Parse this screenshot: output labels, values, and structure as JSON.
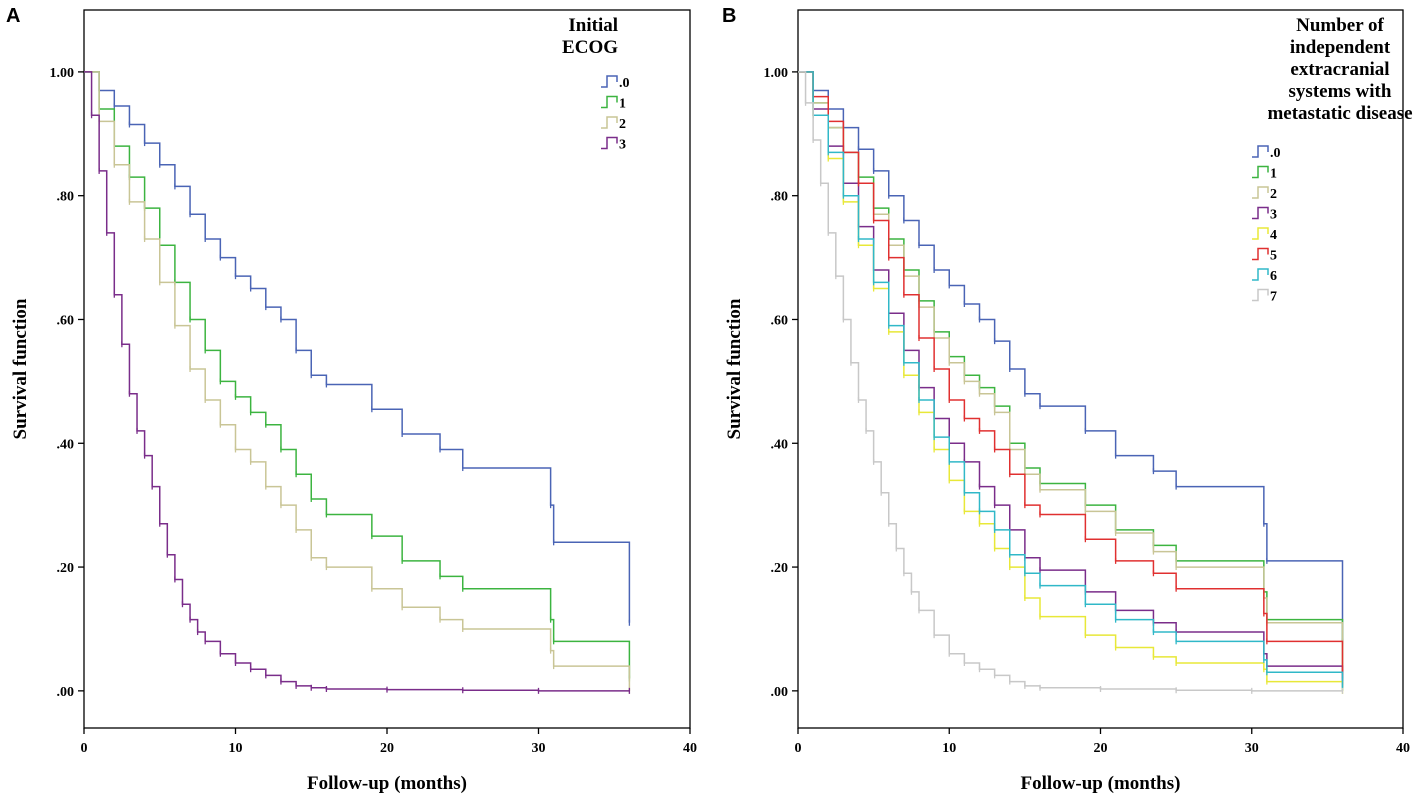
{
  "chart_data": [
    {
      "panel": "A",
      "type": "line",
      "title": "",
      "xlabel": "Follow-up (months)",
      "ylabel": "Survival function",
      "xlim": [
        0,
        40
      ],
      "ylim": [
        -0.06,
        1.1
      ],
      "xticks": [
        0,
        10,
        20,
        30,
        40
      ],
      "xtick_labels": [
        "0",
        "10",
        "20",
        "30",
        "40"
      ],
      "yticks": [
        0,
        0.2,
        0.4,
        0.6,
        0.8,
        1.0
      ],
      "ytick_labels": [
        ".00",
        ".20",
        ".40",
        ".60",
        ".80",
        "1.00"
      ],
      "legend_title": [
        "Initial",
        "ECOG"
      ],
      "series": [
        {
          "name": ".0",
          "color": "#4a64b5",
          "x": [
            0,
            1,
            2,
            3,
            4,
            5,
            6,
            7,
            8,
            9,
            10,
            11,
            12,
            13,
            14,
            15,
            16,
            19,
            21,
            23.5,
            25,
            30.8,
            31,
            36
          ],
          "y": [
            1.0,
            0.97,
            0.945,
            0.915,
            0.885,
            0.85,
            0.815,
            0.77,
            0.73,
            0.7,
            0.67,
            0.65,
            0.62,
            0.6,
            0.55,
            0.51,
            0.495,
            0.455,
            0.415,
            0.39,
            0.36,
            0.3,
            0.24,
            0.11
          ]
        },
        {
          "name": "1",
          "color": "#3cb440",
          "x": [
            0,
            1,
            2,
            3,
            4,
            5,
            6,
            7,
            8,
            9,
            10,
            11,
            12,
            13,
            14,
            15,
            16,
            19,
            21,
            23.5,
            25,
            30.8,
            31,
            36
          ],
          "y": [
            1.0,
            0.94,
            0.88,
            0.83,
            0.78,
            0.72,
            0.66,
            0.6,
            0.55,
            0.5,
            0.475,
            0.45,
            0.43,
            0.39,
            0.35,
            0.31,
            0.285,
            0.25,
            0.21,
            0.185,
            0.165,
            0.115,
            0.08,
            0.02
          ]
        },
        {
          "name": "2",
          "color": "#c9c596",
          "x": [
            0,
            1,
            2,
            3,
            4,
            5,
            6,
            7,
            8,
            9,
            10,
            11,
            12,
            13,
            14,
            15,
            16,
            19,
            21,
            23.5,
            25,
            30.8,
            31,
            36
          ],
          "y": [
            1.0,
            0.92,
            0.85,
            0.79,
            0.73,
            0.66,
            0.59,
            0.52,
            0.47,
            0.43,
            0.39,
            0.37,
            0.33,
            0.3,
            0.26,
            0.215,
            0.2,
            0.165,
            0.135,
            0.115,
            0.1,
            0.065,
            0.04,
            0.0
          ]
        },
        {
          "name": "3",
          "color": "#7a2d8a",
          "x": [
            0,
            0.5,
            1,
            1.5,
            2,
            2.5,
            3,
            3.5,
            4,
            4.5,
            5,
            5.5,
            6,
            6.5,
            7,
            7.5,
            8,
            9,
            10,
            11,
            12,
            13,
            14,
            15,
            16,
            20,
            25,
            30,
            36
          ],
          "y": [
            1.0,
            0.93,
            0.84,
            0.74,
            0.64,
            0.56,
            0.48,
            0.42,
            0.38,
            0.33,
            0.27,
            0.22,
            0.18,
            0.14,
            0.115,
            0.095,
            0.08,
            0.06,
            0.045,
            0.035,
            0.025,
            0.015,
            0.008,
            0.005,
            0.003,
            0.002,
            0.001,
            0.0,
            0.0
          ]
        }
      ]
    },
    {
      "panel": "B",
      "type": "line",
      "title": "",
      "xlabel": "Follow-up (months)",
      "ylabel": "Survival function",
      "xlim": [
        0,
        40
      ],
      "ylim": [
        -0.06,
        1.1
      ],
      "xticks": [
        0,
        10,
        20,
        30,
        40
      ],
      "xtick_labels": [
        "0",
        "10",
        "20",
        "30",
        "40"
      ],
      "yticks": [
        0,
        0.2,
        0.4,
        0.6,
        0.8,
        1.0
      ],
      "ytick_labels": [
        ".00",
        ".20",
        ".40",
        ".60",
        ".80",
        "1.00"
      ],
      "legend_title": [
        "Number of",
        "independent",
        "extracranial",
        "systems with",
        "metastatic disease"
      ],
      "series": [
        {
          "name": ".0",
          "color": "#4a64b5",
          "x": [
            0,
            1,
            2,
            3,
            4,
            5,
            6,
            7,
            8,
            9,
            10,
            11,
            12,
            13,
            14,
            15,
            16,
            19,
            21,
            23.5,
            25,
            30.8,
            31,
            36
          ],
          "y": [
            1.0,
            0.97,
            0.94,
            0.91,
            0.875,
            0.84,
            0.8,
            0.76,
            0.72,
            0.68,
            0.655,
            0.625,
            0.6,
            0.565,
            0.52,
            0.48,
            0.46,
            0.42,
            0.38,
            0.355,
            0.33,
            0.27,
            0.21,
            0.08
          ]
        },
        {
          "name": "1",
          "color": "#3cb440",
          "x": [
            0,
            1,
            2,
            3,
            4,
            5,
            6,
            7,
            8,
            9,
            10,
            11,
            12,
            13,
            14,
            15,
            16,
            19,
            21,
            23.5,
            25,
            30.8,
            31,
            36
          ],
          "y": [
            1.0,
            0.95,
            0.91,
            0.87,
            0.83,
            0.78,
            0.73,
            0.68,
            0.63,
            0.58,
            0.54,
            0.51,
            0.49,
            0.46,
            0.4,
            0.36,
            0.335,
            0.3,
            0.26,
            0.235,
            0.21,
            0.16,
            0.115,
            0.02
          ]
        },
        {
          "name": "2",
          "color": "#c9c596",
          "x": [
            0,
            1,
            2,
            3,
            4,
            5,
            6,
            7,
            8,
            9,
            10,
            11,
            12,
            13,
            14,
            15,
            16,
            19,
            21,
            23.5,
            25,
            30.8,
            31,
            36
          ],
          "y": [
            1.0,
            0.95,
            0.91,
            0.87,
            0.82,
            0.77,
            0.72,
            0.67,
            0.62,
            0.57,
            0.53,
            0.5,
            0.48,
            0.45,
            0.39,
            0.35,
            0.325,
            0.29,
            0.255,
            0.225,
            0.2,
            0.15,
            0.11,
            0.01
          ]
        },
        {
          "name": "3",
          "color": "#7a2d8a",
          "x": [
            0,
            1,
            2,
            3,
            4,
            5,
            6,
            7,
            8,
            9,
            10,
            11,
            12,
            13,
            14,
            15,
            16,
            19,
            21,
            23.5,
            25,
            30.8,
            31,
            36
          ],
          "y": [
            1.0,
            0.94,
            0.88,
            0.82,
            0.75,
            0.68,
            0.61,
            0.55,
            0.49,
            0.44,
            0.4,
            0.37,
            0.33,
            0.3,
            0.26,
            0.215,
            0.195,
            0.16,
            0.13,
            0.11,
            0.095,
            0.06,
            0.04,
            0.01
          ]
        },
        {
          "name": "4",
          "color": "#e8e838",
          "x": [
            0,
            1,
            2,
            3,
            4,
            5,
            6,
            7,
            8,
            9,
            10,
            11,
            12,
            13,
            14,
            15,
            16,
            19,
            21,
            23.5,
            25,
            30.8,
            31,
            36
          ],
          "y": [
            1.0,
            0.93,
            0.86,
            0.79,
            0.72,
            0.65,
            0.58,
            0.51,
            0.45,
            0.39,
            0.34,
            0.29,
            0.27,
            0.23,
            0.2,
            0.15,
            0.12,
            0.09,
            0.07,
            0.055,
            0.045,
            0.035,
            0.015,
            0.0
          ]
        },
        {
          "name": "5",
          "color": "#e03030",
          "x": [
            0,
            1,
            2,
            3,
            4,
            5,
            6,
            7,
            8,
            9,
            10,
            11,
            12,
            13,
            14,
            15,
            16,
            19,
            21,
            23.5,
            25,
            30.8,
            31,
            36
          ],
          "y": [
            1.0,
            0.96,
            0.92,
            0.87,
            0.82,
            0.76,
            0.7,
            0.64,
            0.57,
            0.52,
            0.47,
            0.44,
            0.42,
            0.39,
            0.35,
            0.3,
            0.285,
            0.245,
            0.21,
            0.19,
            0.165,
            0.125,
            0.08,
            0.03
          ]
        },
        {
          "name": "6",
          "color": "#30b8c8",
          "x": [
            0,
            1,
            2,
            3,
            4,
            5,
            6,
            7,
            8,
            9,
            10,
            11,
            12,
            13,
            14,
            15,
            16,
            19,
            21,
            23.5,
            25,
            30.8,
            31,
            36
          ],
          "y": [
            1.0,
            0.93,
            0.87,
            0.8,
            0.73,
            0.66,
            0.59,
            0.53,
            0.47,
            0.41,
            0.37,
            0.32,
            0.29,
            0.26,
            0.22,
            0.19,
            0.17,
            0.14,
            0.115,
            0.095,
            0.08,
            0.05,
            0.03,
            0.005
          ]
        },
        {
          "name": "7",
          "color": "#c8c8c8",
          "x": [
            0,
            0.5,
            1,
            1.5,
            2,
            2.5,
            3,
            3.5,
            4,
            4.5,
            5,
            5.5,
            6,
            6.5,
            7,
            7.5,
            8,
            9,
            10,
            11,
            12,
            13,
            14,
            15,
            16,
            20,
            25,
            30,
            36
          ],
          "y": [
            1.0,
            0.95,
            0.89,
            0.82,
            0.74,
            0.67,
            0.6,
            0.53,
            0.47,
            0.42,
            0.37,
            0.32,
            0.27,
            0.23,
            0.19,
            0.16,
            0.13,
            0.09,
            0.06,
            0.045,
            0.035,
            0.025,
            0.015,
            0.008,
            0.005,
            0.003,
            0.001,
            0.0,
            0.0
          ]
        }
      ]
    }
  ]
}
